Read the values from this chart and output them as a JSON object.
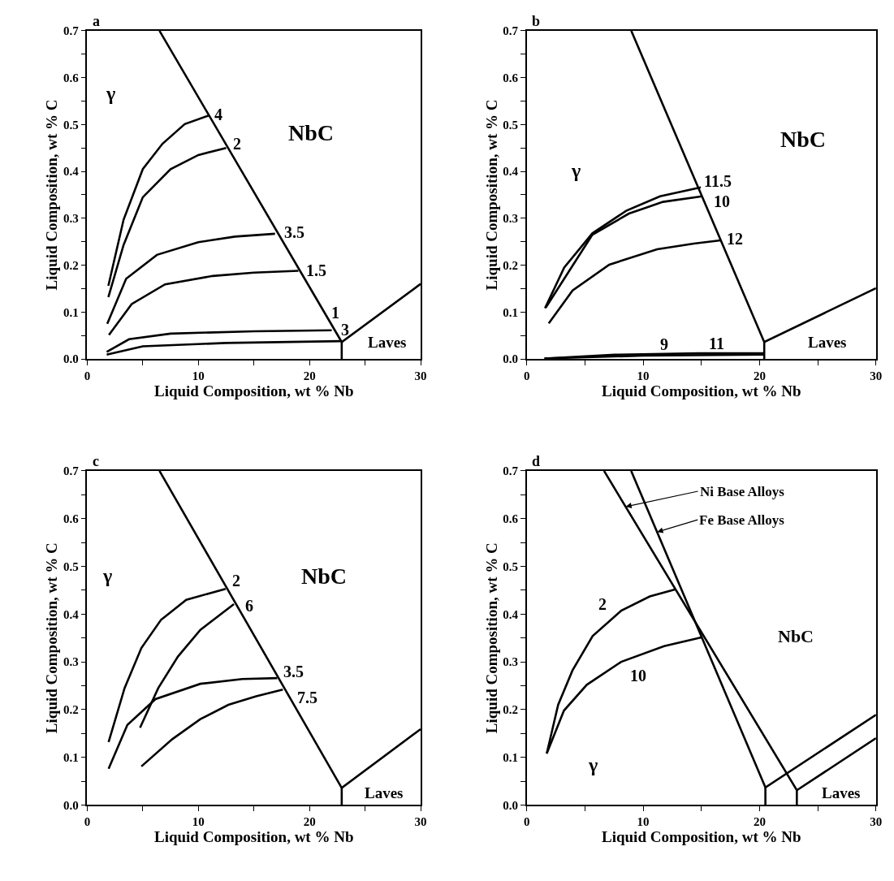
{
  "chart_data": [
    {
      "type": "line",
      "title": "a",
      "xlabel": "Liquid Composition, wt % Nb",
      "ylabel": "Liquid Composition, wt % C",
      "xlim": [
        0,
        30
      ],
      "ylim": [
        0,
        0.7
      ],
      "xticks": [
        0,
        {
          "value": 5,
          "label": null
        },
        10,
        {
          "value": 15,
          "label": null
        },
        20,
        {
          "value": 25,
          "label": null
        },
        30
      ],
      "yticks": [
        {
          "value": 0,
          "label": "0.0"
        },
        {
          "value": 0.05,
          "label": null
        },
        0.1,
        {
          "value": 0.15,
          "label": null
        },
        0.2,
        {
          "value": 0.25,
          "label": null
        },
        0.3,
        {
          "value": 0.35,
          "label": null
        },
        0.4,
        {
          "value": 0.45,
          "label": null
        },
        0.5,
        {
          "value": 0.55,
          "label": null
        },
        0.6,
        {
          "value": 0.65,
          "label": null
        },
        0.7
      ],
      "series": [
        {
          "color": "#000000",
          "x": [
            6.5,
            22.9,
            30
          ],
          "values": [
            0.7,
            0.036,
            0.16
          ]
        },
        {
          "color": "#000000",
          "x": [
            22.9,
            22.9
          ],
          "values": [
            0.036,
            0
          ]
        },
        {
          "color": "#000000",
          "x": [
            1.9,
            3.27,
            5.0,
            6.77,
            8.77,
            10.9
          ],
          "values": [
            0.156,
            0.297,
            0.405,
            0.459,
            0.501,
            0.519
          ]
        },
        {
          "color": "#000000",
          "x": [
            1.9,
            3.27,
            5.0,
            7.5,
            10.0,
            12.5
          ],
          "values": [
            0.132,
            0.243,
            0.345,
            0.405,
            0.435,
            0.45
          ]
        },
        {
          "color": "#000000",
          "x": [
            1.8,
            3.5,
            6.27,
            10.0,
            13.3,
            16.9
          ],
          "values": [
            0.075,
            0.171,
            0.222,
            0.249,
            0.261,
            0.267
          ]
        },
        {
          "color": "#000000",
          "x": [
            1.95,
            4.0,
            7.0,
            11.3,
            15.0,
            19.0
          ],
          "values": [
            0.051,
            0.117,
            0.159,
            0.177,
            0.184,
            0.188
          ]
        },
        {
          "color": "#000000",
          "x": [
            1.75,
            3.76,
            7.5,
            15.0,
            22.0
          ],
          "values": [
            0.015,
            0.042,
            0.054,
            0.059,
            0.061
          ]
        },
        {
          "color": "#000000",
          "x": [
            1.75,
            5.0,
            12.5,
            22.8
          ],
          "values": [
            0.009,
            0.027,
            0.034,
            0.038
          ]
        }
      ],
      "annotations": [
        {
          "text": "4",
          "x": 11.15,
          "y": 0.522
        },
        {
          "text": "2",
          "x": 12.8,
          "y": 0.459
        },
        {
          "text": "3.5",
          "x": 17.4,
          "y": 0.27
        },
        {
          "text": "1.5",
          "x": 19.4,
          "y": 0.189
        },
        {
          "text": "1",
          "x": 21.7,
          "y": 0.099
        },
        {
          "text": "3",
          "x": 22.55,
          "y": 0.063
        },
        "γ",
        "NbC",
        "Laves"
      ]
    },
    {
      "type": "line",
      "title": "b",
      "xlabel": "Liquid Composition, wt % Nb",
      "ylabel": "Liquid Composition, wt % C",
      "xlim": [
        0,
        30
      ],
      "ylim": [
        0,
        0.7
      ],
      "xticks": [
        0,
        {
          "value": 5,
          "label": null
        },
        10,
        {
          "value": 15,
          "label": null
        },
        20,
        {
          "value": 25,
          "label": null
        },
        30
      ],
      "yticks": [
        {
          "value": 0,
          "label": "0.0"
        },
        {
          "value": 0.05,
          "label": null
        },
        0.1,
        {
          "value": 0.15,
          "label": null
        },
        0.2,
        {
          "value": 0.25,
          "label": null
        },
        0.3,
        {
          "value": 0.35,
          "label": null
        },
        0.4,
        {
          "value": 0.45,
          "label": null
        },
        0.5,
        {
          "value": 0.55,
          "label": null
        },
        0.6,
        {
          "value": 0.65,
          "label": null
        },
        0.7
      ],
      "series": [
        {
          "color": "#000000",
          "x": [
            8.98,
            20.4,
            30
          ],
          "values": [
            0.7,
            0.036,
            0.151
          ]
        },
        {
          "color": "#000000",
          "x": [
            20.4,
            20.4
          ],
          "values": [
            0.036,
            0
          ]
        },
        {
          "color": "#000000",
          "x": [
            1.57,
            3.22,
            5.64,
            8.54,
            11.45,
            14.95
          ],
          "values": [
            0.108,
            0.195,
            0.268,
            0.316,
            0.347,
            0.366
          ]
        },
        {
          "color": "#000000",
          "x": [
            1.65,
            5.64,
            8.78,
            11.7,
            15.07
          ],
          "values": [
            0.11,
            0.265,
            0.31,
            0.335,
            0.347
          ]
        },
        {
          "color": "#000000",
          "x": [
            1.89,
            3.94,
            7.09,
            11.2,
            14.35,
            16.65
          ],
          "values": [
            0.076,
            0.146,
            0.201,
            0.234,
            0.246,
            0.253
          ]
        },
        {
          "color": "#000000",
          "x": [
            1.52,
            7.57,
            14.8,
            20.4
          ],
          "values": [
            0.001,
            0.009,
            0.012,
            0.012
          ]
        },
        {
          "color": "#000000",
          "x": [
            1.52,
            10.0,
            20.4
          ],
          "values": [
            0.001,
            0.007,
            0.009
          ]
        }
      ],
      "annotations": [
        {
          "text": "11.5",
          "x": 14.95,
          "y": 0.38
        },
        {
          "text": "10",
          "x": 15.07,
          "y": 0.347
        },
        {
          "text": "12",
          "x": 16.9,
          "y": 0.256
        },
        {
          "text": "9",
          "x": 11.57,
          "y": 0.011
        },
        {
          "text": "11",
          "x": 15.8,
          "y": 0.012
        },
        "γ",
        "NbC",
        "Laves"
      ]
    },
    {
      "type": "line",
      "title": "c",
      "xlabel": "Liquid Composition, wt % Nb",
      "ylabel": "Liquid Composition, wt % C",
      "xlim": [
        0,
        30
      ],
      "ylim": [
        0,
        0.7
      ],
      "xticks": [
        0,
        {
          "value": 5,
          "label": null
        },
        10,
        {
          "value": 15,
          "label": null
        },
        20,
        {
          "value": 25,
          "label": null
        },
        30
      ],
      "yticks": [
        {
          "value": 0,
          "label": "0.0"
        },
        {
          "value": 0.05,
          "label": null
        },
        0.1,
        {
          "value": 0.15,
          "label": null
        },
        0.2,
        {
          "value": 0.25,
          "label": null
        },
        0.3,
        {
          "value": 0.35,
          "label": null
        },
        0.4,
        {
          "value": 0.45,
          "label": null
        },
        0.5,
        {
          "value": 0.55,
          "label": null
        },
        0.6,
        {
          "value": 0.65,
          "label": null
        },
        0.7
      ],
      "series": [
        {
          "color": "#000000",
          "x": [
            6.5,
            22.9,
            30
          ],
          "values": [
            0.7,
            0.036,
            0.159
          ]
        },
        {
          "color": "#000000",
          "x": [
            22.9,
            22.9
          ],
          "values": [
            0.036,
            0
          ]
        },
        {
          "color": "#000000",
          "x": [
            1.92,
            3.36,
            4.87,
            6.64,
            8.91,
            12.45
          ],
          "values": [
            0.132,
            0.245,
            0.329,
            0.388,
            0.43,
            0.453
          ]
        },
        {
          "color": "#000000",
          "x": [
            4.75,
            6.39,
            8.16,
            10.18,
            13.2
          ],
          "values": [
            0.162,
            0.245,
            0.311,
            0.367,
            0.421
          ]
        },
        {
          "color": "#000000",
          "x": [
            1.92,
            3.61,
            6.14,
            10.18,
            13.96,
            17.1
          ],
          "values": [
            0.076,
            0.168,
            0.222,
            0.254,
            0.264,
            0.266
          ]
        },
        {
          "color": "#000000",
          "x": [
            4.87,
            7.65,
            10.18,
            12.7,
            15.2,
            17.6
          ],
          "values": [
            0.081,
            0.138,
            0.18,
            0.21,
            0.228,
            0.242
          ]
        }
      ],
      "annotations": [
        {
          "text": "2",
          "x": 12.45,
          "y": 0.453
        },
        {
          "text": "6",
          "x": 13.96,
          "y": 0.418
        },
        {
          "text": "3.5",
          "x": 17.1,
          "y": 0.266
        },
        {
          "text": "7.5",
          "x": 18.6,
          "y": 0.225
        },
        "γ",
        "NbC",
        "Laves"
      ]
    },
    {
      "type": "line",
      "title": "d",
      "xlabel": "Liquid Composition, wt % Nb",
      "ylabel": "Liquid Composition, wt % C",
      "xlim": [
        0,
        30
      ],
      "ylim": [
        0,
        0.7
      ],
      "xticks": [
        0,
        {
          "value": 5,
          "label": null
        },
        10,
        {
          "value": 15,
          "label": null
        },
        20,
        {
          "value": 25,
          "label": null
        },
        30
      ],
      "yticks": [
        {
          "value": 0,
          "label": "0.0"
        },
        {
          "value": 0.05,
          "label": null
        },
        0.1,
        {
          "value": 0.15,
          "label": null
        },
        0.2,
        {
          "value": 0.25,
          "label": null
        },
        0.3,
        {
          "value": 0.35,
          "label": null
        },
        0.4,
        {
          "value": 0.45,
          "label": null
        },
        0.5,
        {
          "value": 0.55,
          "label": null
        },
        0.6,
        {
          "value": 0.65,
          "label": null
        },
        0.7
      ],
      "series": [
        {
          "color": "#000000",
          "x": [
            6.64,
            23.2,
            30
          ],
          "values": [
            0.7,
            0.031,
            0.14
          ]
        },
        {
          "color": "#000000",
          "x": [
            8.97,
            20.5,
            30
          ],
          "values": [
            0.7,
            0.037,
            0.189
          ]
        },
        {
          "color": "#000000",
          "x": [
            23.2,
            23.2
          ],
          "values": [
            0.031,
            0
          ]
        },
        {
          "color": "#000000",
          "x": [
            20.5,
            20.5
          ],
          "values": [
            0.037,
            0
          ]
        },
        {
          "color": "#000000",
          "x": [
            1.72,
            2.7,
            3.93,
            5.66,
            8.11,
            10.57,
            12.79
          ],
          "values": [
            0.108,
            0.21,
            0.282,
            0.354,
            0.407,
            0.437,
            0.452
          ]
        },
        {
          "color": "#000000",
          "x": [
            1.72,
            3.2,
            5.16,
            8.11,
            11.8,
            15.0
          ],
          "values": [
            0.108,
            0.198,
            0.252,
            0.3,
            0.333,
            0.351
          ]
        }
      ],
      "annotations": [
        {
          "text": "2",
          "x": 6.6,
          "y": 0.374
        },
        {
          "text": "10",
          "x": 9.84,
          "y": 0.315
        },
        {
          "text": "Ni Base Alloys",
          "x": 8.5,
          "y": 0.625
        },
        {
          "text": "Fe Base Alloys",
          "x": 11.2,
          "y": 0.572
        },
        "γ",
        "NbC",
        "Laves"
      ]
    }
  ]
}
